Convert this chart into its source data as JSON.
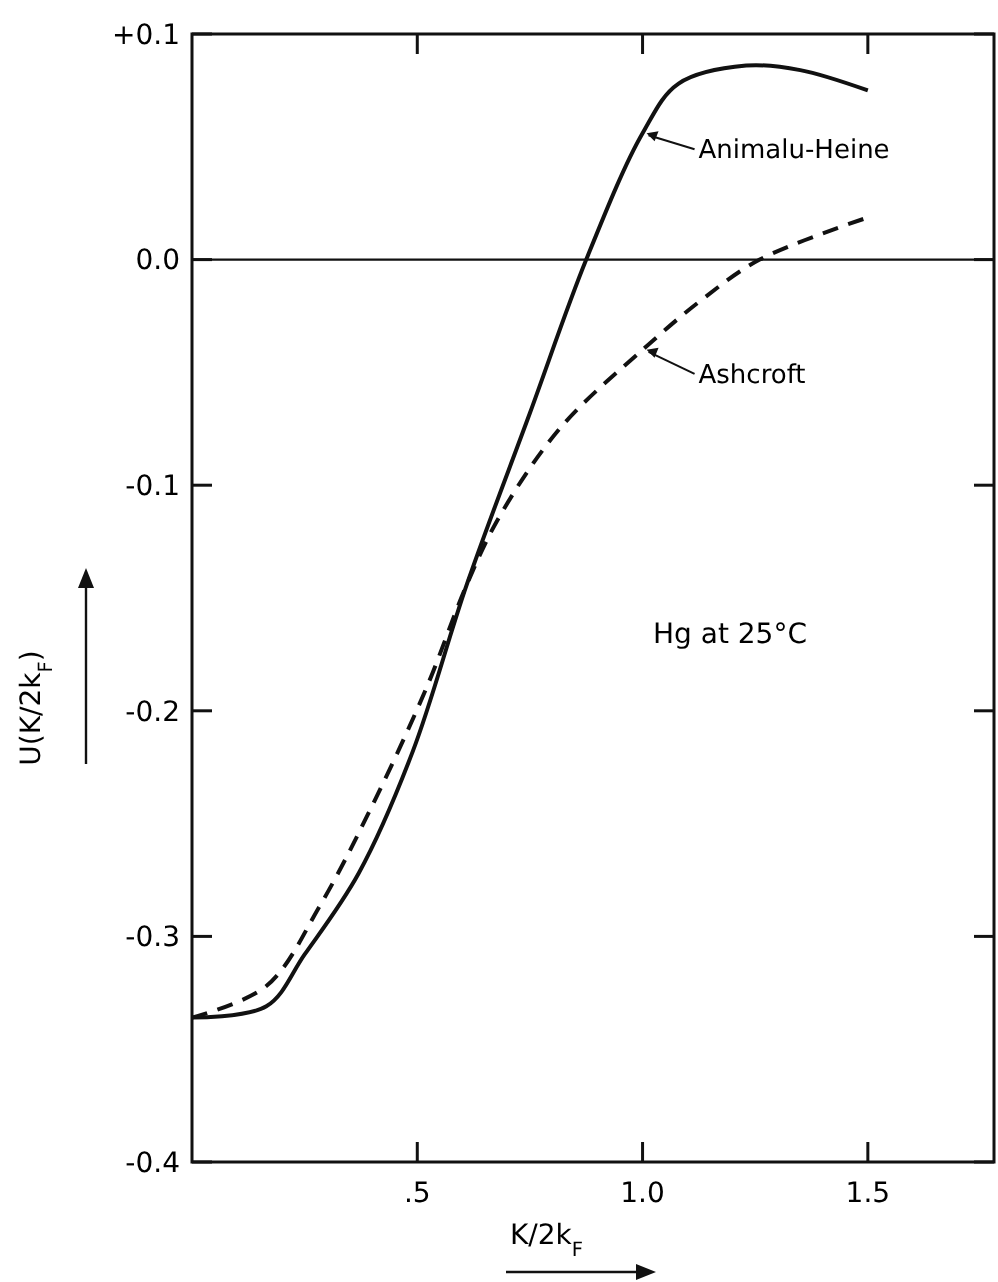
{
  "chart_data": {
    "type": "line",
    "xlabel": "K/2k$_{F}$",
    "ylabel": "U(K/2k$_{F}$)",
    "xlim": [
      0,
      1.78
    ],
    "ylim": [
      -0.4,
      0.1
    ],
    "xticks": [
      {
        "value": 0.5,
        "label": ".5"
      },
      {
        "value": 1.0,
        "label": "1.0"
      },
      1.5
    ],
    "yticks": [
      {
        "value": 0.1,
        "label": "+0.1"
      },
      {
        "value": 0,
        "label": "0.0"
      },
      -0.1,
      -0.2,
      -0.3,
      -0.4
    ],
    "grid": false,
    "ref_lines": [
      {
        "axis": "y",
        "value": 0,
        "color": "#111111",
        "line_style": "solid"
      }
    ],
    "annotations": [
      {
        "text": "Animalu-Heine",
        "x": 1.0,
        "y": 0.056
      },
      {
        "text": "Ashcroft",
        "x": 1.0,
        "y": -0.04
      },
      "Hg at 25°C"
    ],
    "series": [
      {
        "color": "#111111",
        "line_style": "solid",
        "x": [
          0,
          0.165,
          0.25,
          0.37,
          0.49,
          0.61,
          0.75,
          0.875,
          1.0,
          1.08,
          1.23,
          1.35,
          1.5
        ],
        "values": [
          -0.336,
          -0.331,
          -0.308,
          -0.272,
          -0.218,
          -0.144,
          -0.068,
          0,
          0.056,
          0.078,
          0.086,
          0.084,
          0.075
        ]
      },
      {
        "color": "#111111",
        "line_style": "dashed",
        "x": [
          0,
          0.165,
          0.285,
          0.4,
          0.52,
          0.61,
          0.685,
          0.82,
          1.0,
          1.13,
          1.26,
          1.49
        ],
        "values": [
          -0.336,
          -0.322,
          -0.286,
          -0.242,
          -0.19,
          -0.144,
          -0.113,
          -0.074,
          -0.04,
          -0.018,
          0,
          0.018
        ]
      }
    ]
  }
}
